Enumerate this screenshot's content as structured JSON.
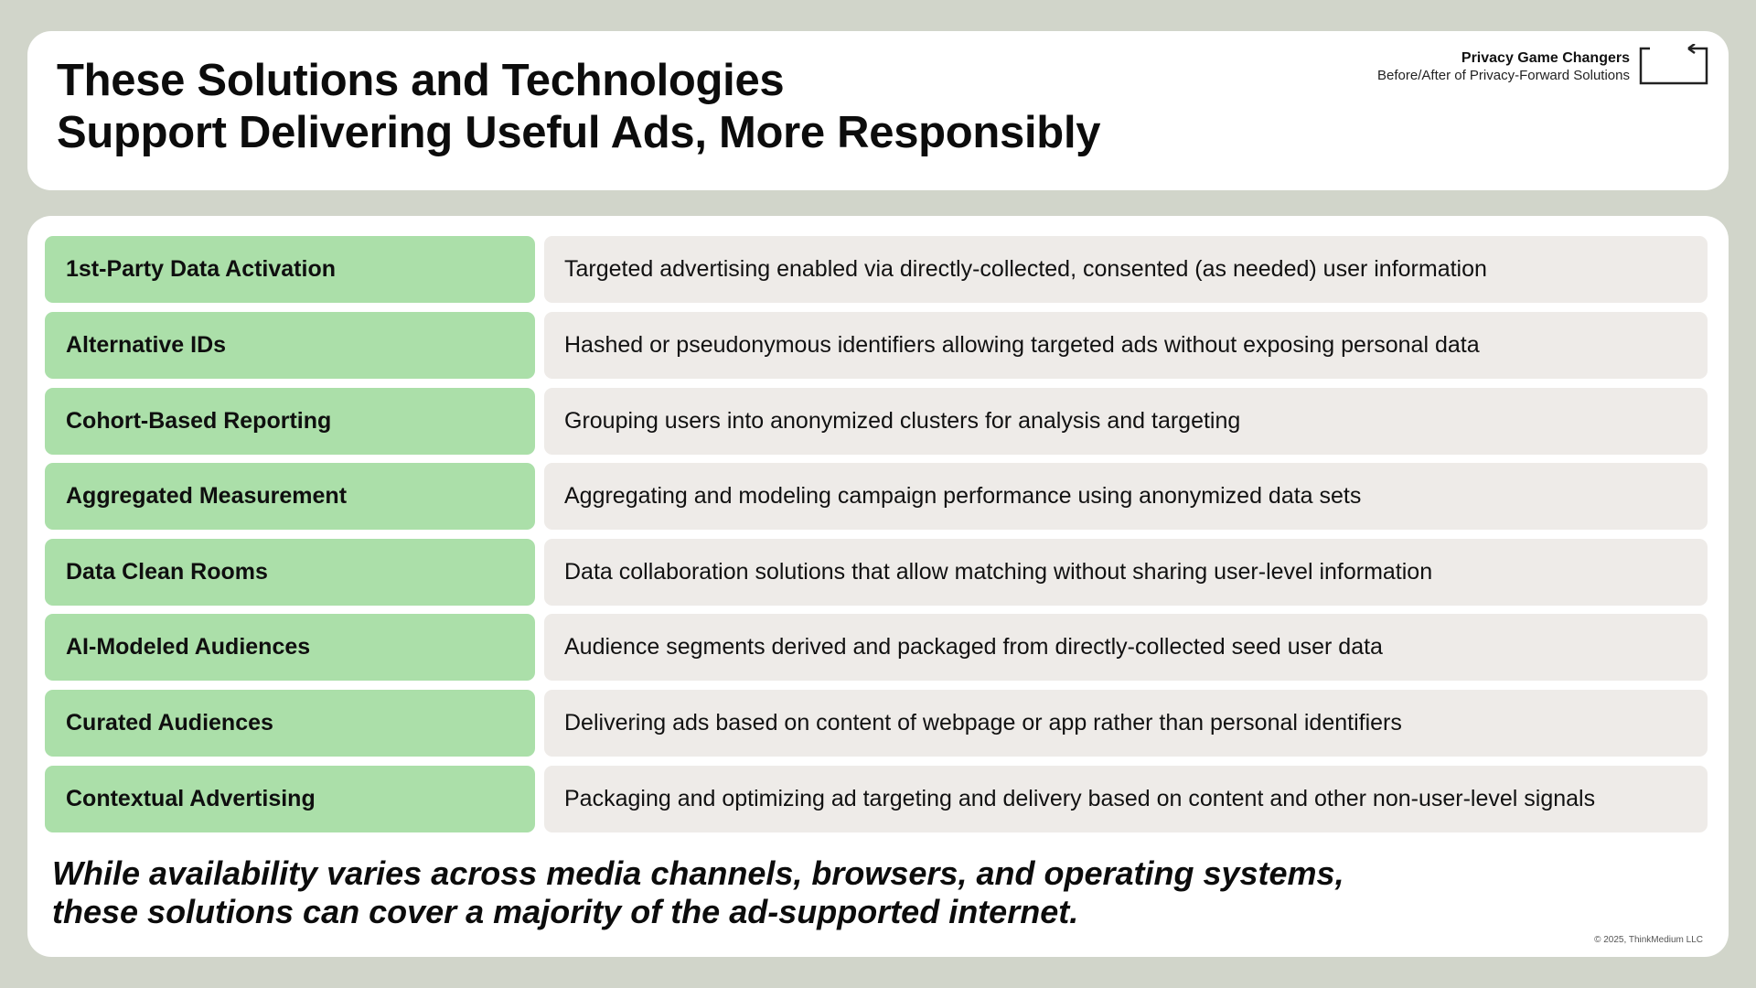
{
  "header": {
    "title_line1": "These Solutions and Technologies",
    "title_line2": "Support Delivering Useful Ads, More Responsibly",
    "brand_name": "Privacy Game Changers",
    "brand_subtitle": "Before/After of Privacy-Forward Solutions",
    "brand_icon": "bracket-frame-icon"
  },
  "rows": [
    {
      "label": "1st-Party Data Activation",
      "description": "Targeted advertising enabled via directly-collected, consented (as needed) user information"
    },
    {
      "label": "Alternative IDs",
      "description": "Hashed or pseudonymous identifiers allowing targeted ads without exposing personal data"
    },
    {
      "label": "Cohort-Based Reporting",
      "description": "Grouping users into anonymized clusters for analysis and targeting"
    },
    {
      "label": "Aggregated Measurement",
      "description": "Aggregating and modeling campaign performance using anonymized data sets"
    },
    {
      "label": "Data Clean Rooms",
      "description": "Data collaboration solutions that allow matching without sharing user-level information"
    },
    {
      "label": "AI-Modeled Audiences",
      "description": "Audience segments derived and packaged from directly-collected seed user data"
    },
    {
      "label": "Curated Audiences",
      "description": "Delivering ads based on content of webpage or app rather than personal identifiers"
    },
    {
      "label": "Contextual Advertising",
      "description": "Packaging and optimizing ad targeting and delivery based on content and other non-user-level signals"
    }
  ],
  "footer": {
    "note_line1": "While availability varies across media channels, browsers, and operating systems,",
    "note_line2": "these solutions can cover a majority of the ad-supported internet.",
    "copyright": "© 2025, ThinkMedium LLC"
  },
  "colors": {
    "background": "#d1d5ca",
    "label_fill": "#abdfa9",
    "description_fill": "#eeebe8",
    "card": "#ffffff"
  }
}
